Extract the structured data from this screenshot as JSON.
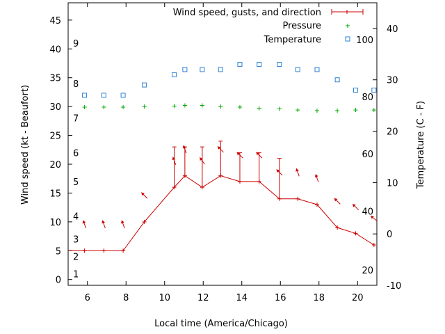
{
  "chart_data": {
    "type": "line",
    "title": "",
    "xlabel": "Local time (America/Chicago)",
    "ylabel": "Wind speed (kt - Beaufort)",
    "y2label": "Temperature (C - F)",
    "xlim": [
      5,
      21
    ],
    "ylim": [
      -1,
      48
    ],
    "y2lim": [
      -10,
      45
    ],
    "x_ticks": [
      6,
      8,
      10,
      12,
      14,
      16,
      18,
      20
    ],
    "y_ticks": [
      0,
      5,
      10,
      15,
      20,
      25,
      30,
      35,
      40,
      45
    ],
    "y2_ticks": [
      -10,
      0,
      10,
      20,
      30,
      40
    ],
    "beaufort_labels": [
      {
        "value": 1,
        "y": 1
      },
      {
        "value": 2,
        "y": 4
      },
      {
        "value": 3,
        "y": 7
      },
      {
        "value": 4,
        "y": 11
      },
      {
        "value": 5,
        "y": 17
      },
      {
        "value": 6,
        "y": 22
      },
      {
        "value": 7,
        "y": 28
      },
      {
        "value": 8,
        "y": 34
      },
      {
        "value": 9,
        "y": 41
      }
    ],
    "fahrenheit_labels": [
      {
        "value": 20,
        "y2": -7
      },
      {
        "value": 40,
        "y2": 4.4
      },
      {
        "value": 60,
        "y2": 15.6
      },
      {
        "value": 80,
        "y2": 26.7
      },
      {
        "value": 100,
        "y2": 37.8
      }
    ],
    "legend_position": "top-right",
    "series": [
      {
        "name": "Wind speed, gusts, and direction",
        "color": "#cc0000",
        "x": [
          5,
          5.85,
          6.85,
          7.85,
          8.95,
          10.5,
          11.05,
          11.95,
          12.9,
          13.9,
          14.9,
          15.95,
          16.9,
          17.9,
          18.95,
          19.9,
          20.85
        ],
        "values": [
          5,
          5,
          5,
          5,
          10,
          16,
          18,
          16,
          18,
          17,
          17,
          14,
          14,
          13,
          9,
          8,
          6
        ],
        "gusts": [
          null,
          null,
          null,
          null,
          null,
          23,
          23,
          23,
          24,
          22,
          22,
          21,
          null,
          null,
          null,
          null,
          null
        ],
        "direction_deg": [
          null,
          160,
          160,
          160,
          135,
          160,
          160,
          145,
          135,
          135,
          135,
          135,
          160,
          160,
          135,
          135,
          130
        ]
      },
      {
        "name": "Pressure",
        "color": "#00aa00",
        "x": [
          5.85,
          6.85,
          7.85,
          8.95,
          10.5,
          11.05,
          11.95,
          12.9,
          13.9,
          14.9,
          15.95,
          16.9,
          17.9,
          18.95,
          19.9,
          20.85
        ],
        "values": [
          29.9,
          29.9,
          29.9,
          30.0,
          30.1,
          30.2,
          30.2,
          30.0,
          29.9,
          29.7,
          29.6,
          29.4,
          29.3,
          29.3,
          29.4,
          29.4
        ]
      },
      {
        "name": "Temperature",
        "color": "#2a7fd4",
        "axis": "y2",
        "x": [
          5.85,
          6.85,
          7.85,
          8.95,
          10.5,
          11.05,
          11.95,
          12.9,
          13.9,
          14.9,
          15.95,
          16.9,
          17.9,
          18.95,
          19.9,
          20.85
        ],
        "values": [
          27,
          27,
          27,
          29,
          31,
          32,
          32,
          32,
          33,
          33,
          33,
          32,
          32,
          30,
          28,
          28
        ]
      }
    ]
  }
}
